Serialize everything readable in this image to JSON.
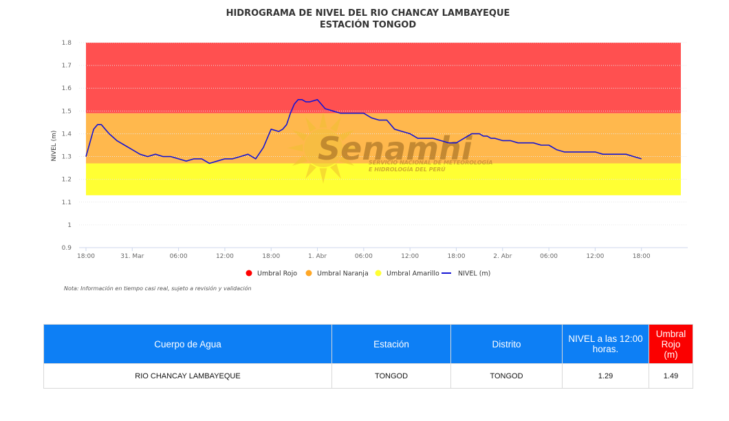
{
  "chart_data": {
    "type": "line",
    "title": "HIDROGRAMA DE NIVEL DEL RIO CHANCAY LAMBAYEQUE",
    "subtitle": "ESTACIÓN TONGOD",
    "ylabel": "NIVEL (m)",
    "ylim": [
      0.9,
      1.8
    ],
    "yticks": [
      "0.9",
      "1",
      "1.1",
      "1.2",
      "1.3",
      "1.4",
      "1.5",
      "1.6",
      "1.7",
      "1.8"
    ],
    "xticks": [
      "18:00",
      "31. Mar",
      "06:00",
      "12:00",
      "18:00",
      "1. Abr",
      "06:00",
      "12:00",
      "18:00",
      "2. Abr",
      "06:00",
      "12:00",
      "18:00"
    ],
    "x_unit": "hours since 30 Mar 18:00",
    "xlim": [
      0,
      78
    ],
    "thresholds": [
      {
        "name": "Umbral Rojo",
        "from": 1.49,
        "to": 1.8,
        "color": "#ff5050"
      },
      {
        "name": "Umbral Naranja",
        "from": 1.27,
        "to": 1.49,
        "color": "#ffb84d"
      },
      {
        "name": "Umbral Amarillo",
        "from": 1.13,
        "to": 1.27,
        "color": "#ffff33"
      }
    ],
    "series": [
      {
        "name": "NIVEL (m)",
        "color": "#1414d4",
        "x": [
          0,
          1,
          1.5,
          2,
          2.5,
          3,
          4,
          5,
          6,
          7,
          8,
          9,
          10,
          11,
          12,
          13,
          14,
          15,
          16,
          17,
          18,
          19,
          20,
          21,
          22,
          23,
          24,
          25,
          25.5,
          26,
          26.5,
          27,
          27.5,
          28,
          28.5,
          29,
          30,
          31,
          32,
          33,
          33.5,
          34,
          35,
          36,
          37,
          38,
          39,
          40,
          41,
          42,
          43,
          44,
          45,
          46,
          47,
          48,
          49,
          50,
          51,
          51.5,
          52,
          52.5,
          53,
          54,
          55,
          56,
          57,
          58,
          59,
          60,
          61,
          62,
          63,
          64,
          65,
          66,
          67,
          68,
          69,
          70,
          71,
          72
        ],
        "y": [
          1.3,
          1.42,
          1.44,
          1.44,
          1.42,
          1.4,
          1.37,
          1.35,
          1.33,
          1.31,
          1.3,
          1.31,
          1.3,
          1.3,
          1.29,
          1.28,
          1.29,
          1.29,
          1.27,
          1.28,
          1.29,
          1.29,
          1.3,
          1.31,
          1.29,
          1.34,
          1.42,
          1.41,
          1.42,
          1.44,
          1.49,
          1.53,
          1.55,
          1.55,
          1.54,
          1.54,
          1.55,
          1.51,
          1.5,
          1.49,
          1.49,
          1.49,
          1.49,
          1.49,
          1.47,
          1.46,
          1.46,
          1.42,
          1.41,
          1.4,
          1.38,
          1.38,
          1.38,
          1.37,
          1.36,
          1.36,
          1.38,
          1.4,
          1.4,
          1.39,
          1.39,
          1.38,
          1.38,
          1.37,
          1.37,
          1.36,
          1.36,
          1.36,
          1.35,
          1.35,
          1.33,
          1.32,
          1.32,
          1.32,
          1.32,
          1.32,
          1.31,
          1.31,
          1.31,
          1.31,
          1.3,
          1.29
        ]
      }
    ],
    "legend": [
      "Umbral Rojo",
      "Umbral Naranja",
      "Umbral Amarillo",
      "NIVEL (m)"
    ],
    "legend_placement": "bottom",
    "note": "Nota: Información en tiempo casi real, sujeto a revisión y validación",
    "watermark": {
      "name": "Senamhi",
      "line1": "SERVICIO NACIONAL DE METEOROLOGÍA",
      "line2": "E HIDROLOGÍA DEL PERÚ",
      "icon": "sun-logo-icon"
    }
  },
  "table": {
    "headers": [
      "Cuerpo de Agua",
      "Estación",
      "Distrito",
      "NIVEL a las 12:00 horas.",
      "Umbral Rojo (m)"
    ],
    "row": [
      "RIO CHANCAY LAMBAYEQUE",
      "TONGOD",
      "TONGOD",
      "1.29",
      "1.49"
    ],
    "header_color": "#0d7ff5",
    "red_header_color": "#fb0000"
  }
}
